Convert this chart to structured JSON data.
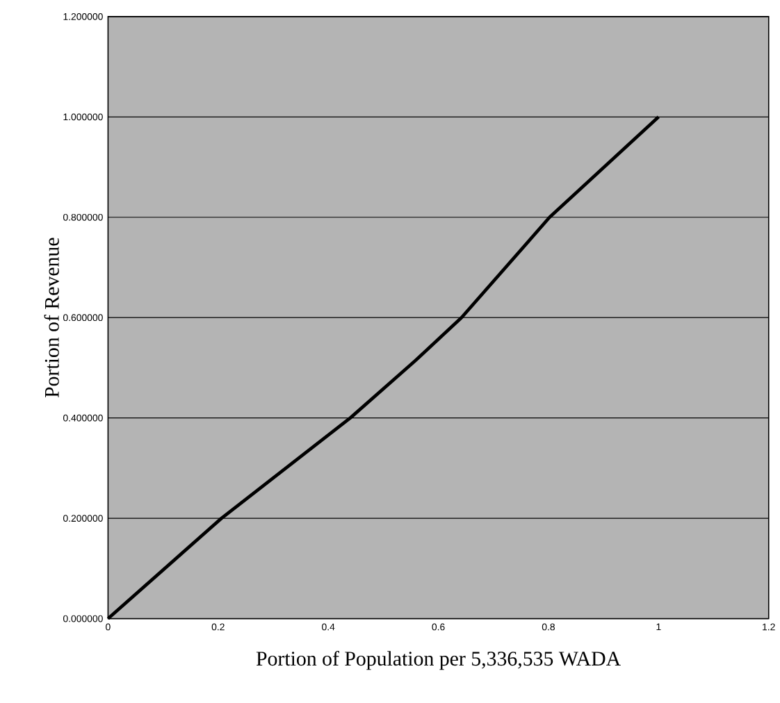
{
  "chart_data": {
    "type": "line",
    "xlabel": "Portion of Population per 5,336,535 WADA",
    "ylabel": "Portion of Revenue",
    "x": [
      0,
      0.206,
      0.44,
      0.558,
      0.642,
      0.802,
      1.0
    ],
    "series": [
      {
        "color": "#000000",
        "values": [
          0,
          0.2,
          0.4,
          0.514,
          0.6,
          0.8,
          1.0
        ]
      }
    ],
    "xlim": [
      0,
      1.2
    ],
    "ylim": [
      0,
      1.2
    ],
    "xticks": [
      0,
      0.2,
      0.4,
      0.6,
      0.8,
      1,
      1.2
    ],
    "yticks": [
      {
        "value": 0,
        "label": "0.000000"
      },
      {
        "value": 0.2,
        "label": "0.200000"
      },
      {
        "value": 0.4,
        "label": "0.400000"
      },
      {
        "value": 0.6,
        "label": "0.600000"
      },
      {
        "value": 0.8,
        "label": "0.800000"
      },
      {
        "value": 1.0,
        "label": "1.000000"
      },
      {
        "value": 1.2,
        "label": "1.200000"
      }
    ],
    "grid": "y",
    "line_style": "solid"
  }
}
